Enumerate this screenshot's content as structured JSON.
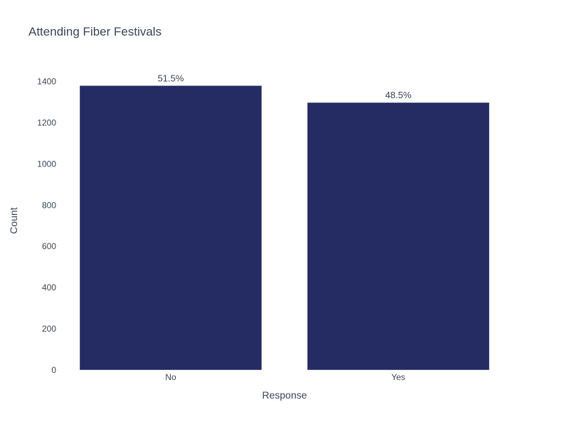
{
  "chart_data": {
    "type": "bar",
    "title": "Attending Fiber Festivals",
    "xlabel": "Response",
    "ylabel": "Count",
    "categories": [
      "No",
      "Yes"
    ],
    "values": [
      1380,
      1298
    ],
    "data_labels": [
      "51.5%",
      "48.5%"
    ],
    "ylim": [
      0,
      1450
    ],
    "yticks": [
      0,
      200,
      400,
      600,
      800,
      1000,
      1200,
      1400
    ],
    "grid": false,
    "legend": "none",
    "bar_color": "#252b63"
  }
}
